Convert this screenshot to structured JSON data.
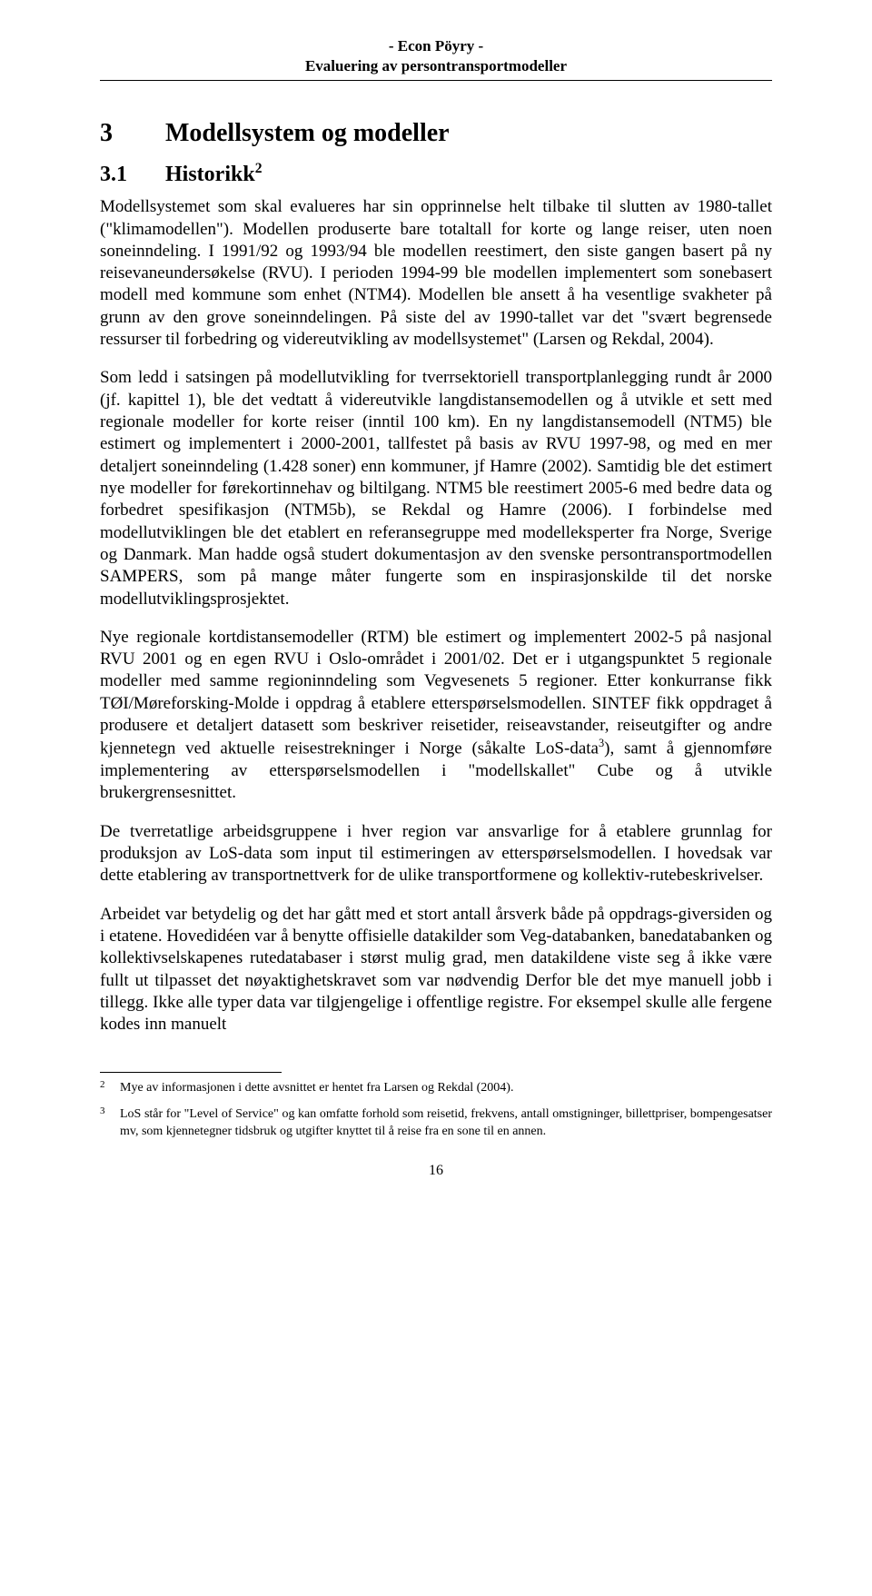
{
  "header": {
    "line1": "- Econ Pöyry -",
    "line2": "Evaluering av persontransportmodeller"
  },
  "h1": {
    "num": "3",
    "title": "Modellsystem og modeller"
  },
  "h2": {
    "num": "3.1",
    "title": "Historikk",
    "fnref": "2"
  },
  "paragraphs": {
    "p1a": "Modellsystemet som skal evalueres har sin opprinnelse helt tilbake til slutten av 1980-tallet (\"klimamodellen\"). Modellen produserte bare totaltall for korte og lange reiser, uten noen soneinndeling. I 1991/92 og 1993/94 ble modellen reestimert, den siste gangen basert på ny reisevaneundersøkelse (RVU). I perioden 1994-99 ble modellen implementert som sonebasert modell med kommune som enhet (NTM4). Modellen ble ansett å ha vesentlige svakheter på grunn av den grove soneinndelingen. På siste del av 1990-tallet var det \"svært begrensede ressurser til forbedring og videreutvikling av modellsystemet\" (Larsen og Rekdal, 2004).",
    "p2": "Som ledd i satsingen på modellutvikling for tverrsektoriell transportplanlegging rundt år 2000 (jf. kapittel 1), ble det vedtatt å videreutvikle langdistansemodellen og å utvikle et sett med regionale modeller for korte reiser (inntil 100 km). En ny langdistansemodell (NTM5) ble estimert og implementert i 2000-2001, tallfestet på basis av RVU 1997-98, og med en mer detaljert soneinndeling (1.428 soner) enn kommuner, jf Hamre (2002). Samtidig ble det estimert nye modeller for førekortinnehav og biltilgang. NTM5 ble reestimert 2005-6 med bedre data og forbedret spesifikasjon (NTM5b), se Rekdal og Hamre (2006). I forbindelse med modellutviklingen ble det etablert en referansegruppe med modelleksperter fra Norge, Sverige og Danmark. Man hadde også studert dokumentasjon av den svenske persontransportmodellen SAMPERS, som på mange måter fungerte som en inspirasjonskilde til det norske modellutviklingsprosjektet.",
    "p3a": "Nye regionale kortdistansemodeller (RTM) ble estimert og implementert 2002-5 på nasjonal RVU 2001 og en egen RVU i Oslo-området i 2001/02. Det er i utgangspunktet 5 regionale modeller med samme regioninndeling som Vegvesenets 5 regioner. Etter konkurranse fikk TØI/Møreforsking-Molde i oppdrag å etablere etterspørselsmodellen. SINTEF fikk oppdraget å produsere et detaljert datasett som beskriver reisetider, reiseavstander, reiseutgifter og andre kjennetegn ved aktuelle reisestrekninger i Norge (såkalte LoS-data",
    "p3b": "), samt å gjennomføre implementering av etterspørselsmodellen i \"modellskallet\" Cube og å utvikle brukergrensesnittet.",
    "p3fnref": "3",
    "p4": "De tverretatlige arbeidsgruppene i hver region var ansvarlige for å etablere grunnlag for produksjon av LoS-data som input til estimeringen av etterspørselsmodellen. I hovedsak var dette etablering av transportnettverk for de ulike transportformene og kollektiv-rutebeskrivelser.",
    "p5": "Arbeidet var betydelig og det har gått med et stort antall årsverk både på oppdrags-giversiden og i etatene. Hovedidéen var å benytte offisielle datakilder som Veg-databanken, banedatabanken og kollektivselskapenes rutedatabaser i størst mulig grad, men datakildene viste seg å ikke være fullt ut tilpasset det nøyaktighetskravet som var nødvendig Derfor ble det mye manuell jobb i tillegg. Ikke alle typer data var tilgjengelige i offentlige registre. For eksempel skulle alle fergene kodes inn manuelt"
  },
  "footnotes": {
    "fn2": {
      "num": "2",
      "text": "Mye av informasjonen i dette avsnittet er hentet fra Larsen og Rekdal (2004)."
    },
    "fn3": {
      "num": "3",
      "text": "LoS står for \"Level of Service\" og kan omfatte forhold som reisetid, frekvens, antall omstigninger, billettpriser, bompengesatser mv, som kjennetegner tidsbruk og utgifter knyttet til å reise fra en sone til en annen."
    }
  },
  "pagenum": "16"
}
